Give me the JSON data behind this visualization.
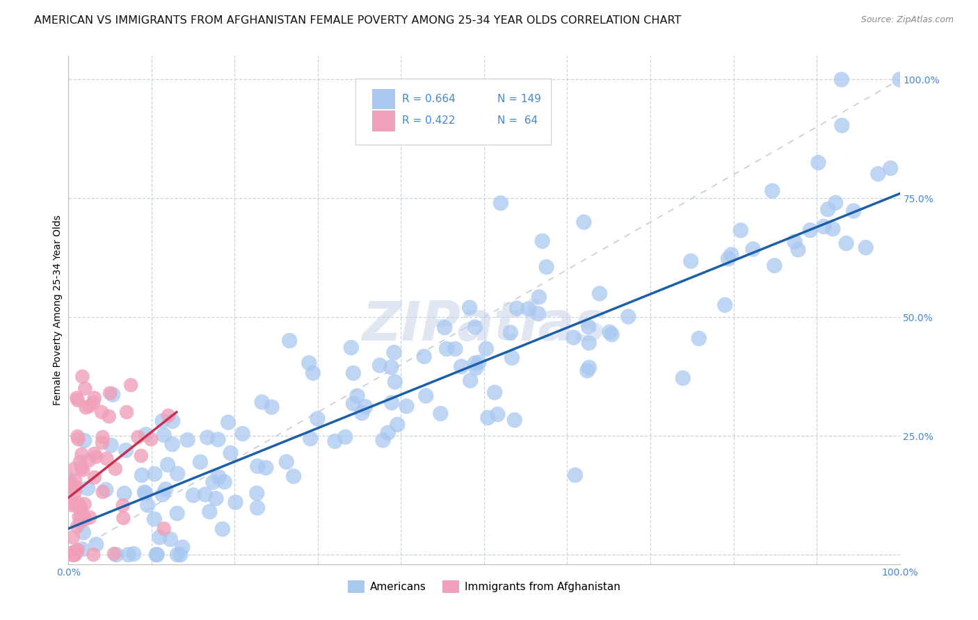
{
  "title": "AMERICAN VS IMMIGRANTS FROM AFGHANISTAN FEMALE POVERTY AMONG 25-34 YEAR OLDS CORRELATION CHART",
  "source": "Source: ZipAtlas.com",
  "ylabel": "Female Poverty Among 25-34 Year Olds",
  "xlim": [
    0,
    1.0
  ],
  "ylim": [
    -0.02,
    1.05
  ],
  "xticks": [
    0.0,
    0.1,
    0.2,
    0.3,
    0.4,
    0.5,
    0.6,
    0.7,
    0.8,
    0.9,
    1.0
  ],
  "yticks": [
    0.0,
    0.25,
    0.5,
    0.75,
    1.0
  ],
  "xticklabels": [
    "0.0%",
    "",
    "",
    "",
    "",
    "",
    "",
    "",
    "",
    "",
    "100.0%"
  ],
  "yticklabels": [
    "",
    "25.0%",
    "50.0%",
    "75.0%",
    "100.0%"
  ],
  "legend_R_american": "R = 0.664",
  "legend_N_american": "N = 149",
  "legend_R_afghan": "R = 0.422",
  "legend_N_afghan": "N =  64",
  "american_color": "#a8c8f0",
  "afghan_color": "#f0a0b8",
  "american_line_color": "#1a5fa8",
  "afghan_line_color": "#c83050",
  "diagonal_color": "#c8d0dc",
  "watermark": "ZIPatlas",
  "watermark_color": "#c8d4e8",
  "american_N": 149,
  "afghan_N": 64,
  "background_color": "#ffffff",
  "grid_color": "#c8d4e0",
  "title_fontsize": 11.5,
  "axis_label_fontsize": 10,
  "tick_fontsize": 10,
  "tick_color": "#4488cc",
  "amer_line_x0": 0.0,
  "amer_line_y0": 0.055,
  "amer_line_x1": 1.0,
  "amer_line_y1": 0.76,
  "afgh_line_x0": 0.0,
  "afgh_line_y0": 0.12,
  "afgh_line_x1": 0.13,
  "afgh_line_y1": 0.3
}
